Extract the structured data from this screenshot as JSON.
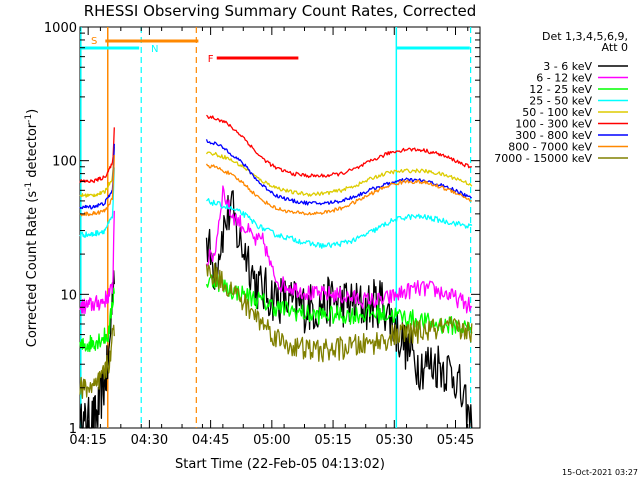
{
  "chart_data": {
    "type": "line",
    "title": "RHESSI Observing Summary Count Rates, Corrected",
    "xlabel": "Start Time (22-Feb-05 04:13:02)",
    "ylabel_main": "Corrected Count Rate (s",
    "ylabel_sup1": "-1",
    "ylabel_mid": " detector",
    "ylabel_sup2": "-1",
    "ylabel_end": ")",
    "xrange_min": [
      0,
      98
    ],
    "yrange": [
      1,
      1000
    ],
    "yscale": "log",
    "x_ticks": [
      {
        "t": 2,
        "label": "04:15"
      },
      {
        "t": 17,
        "label": "04:30"
      },
      {
        "t": 32,
        "label": "04:45"
      },
      {
        "t": 47,
        "label": "05:00"
      },
      {
        "t": 62,
        "label": "05:15"
      },
      {
        "t": 77,
        "label": "05:30"
      },
      {
        "t": 92,
        "label": "05:45"
      }
    ],
    "y_ticks": [
      {
        "v": 1000,
        "label": "1000"
      },
      {
        "v": 100,
        "label": "100"
      },
      {
        "v": 10,
        "label": "10"
      },
      {
        "v": 1,
        "label": "1"
      }
    ],
    "legend_header": [
      "Det 1,3,4,5,6,9,",
      "Att 0"
    ],
    "legend_position": "right",
    "series": [
      {
        "name": "3 - 6 keV",
        "color": "#000000",
        "noise": 0.55,
        "pre": [
          [
            0,
            1
          ],
          [
            4,
            1.2
          ],
          [
            7,
            3
          ],
          [
            8.5,
            20
          ]
        ],
        "post": [
          [
            31,
            25
          ],
          [
            33,
            15
          ],
          [
            35,
            30
          ],
          [
            37,
            45
          ],
          [
            39,
            25
          ],
          [
            41,
            20
          ],
          [
            43,
            12
          ],
          [
            46,
            10
          ],
          [
            50,
            9
          ],
          [
            55,
            8
          ],
          [
            58,
            8
          ],
          [
            62,
            9
          ],
          [
            66,
            8.5
          ],
          [
            70,
            8
          ],
          [
            74,
            9
          ],
          [
            78,
            5
          ],
          [
            83,
            3
          ],
          [
            88,
            3
          ],
          [
            92,
            2.5
          ],
          [
            94,
            1.5
          ],
          [
            96,
            1
          ]
        ]
      },
      {
        "name": "6 - 12 keV",
        "color": "#ff00ff",
        "noise": 0.18,
        "pre": [
          [
            0,
            8
          ],
          [
            4,
            8.5
          ],
          [
            6,
            9
          ],
          [
            8,
            11
          ],
          [
            8.5,
            60
          ]
        ],
        "post": [
          [
            31,
            18
          ],
          [
            33,
            20
          ],
          [
            35,
            60
          ],
          [
            37,
            40
          ],
          [
            39,
            35
          ],
          [
            41,
            30
          ],
          [
            43,
            25
          ],
          [
            45,
            25
          ],
          [
            47,
            15
          ],
          [
            49,
            12
          ],
          [
            53,
            11
          ],
          [
            57,
            10
          ],
          [
            62,
            10
          ],
          [
            66,
            9.5
          ],
          [
            70,
            9
          ],
          [
            74,
            9
          ],
          [
            78,
            10
          ],
          [
            82,
            11
          ],
          [
            86,
            11
          ],
          [
            90,
            10
          ],
          [
            93,
            9
          ],
          [
            96,
            8
          ]
        ]
      },
      {
        "name": "12 - 25 keV",
        "color": "#00ff00",
        "noise": 0.2,
        "pre": [
          [
            0,
            4
          ],
          [
            4,
            4.5
          ],
          [
            7,
            5
          ],
          [
            8.5,
            12
          ]
        ],
        "post": [
          [
            31,
            12
          ],
          [
            33,
            13
          ],
          [
            36,
            11
          ],
          [
            40,
            10
          ],
          [
            44,
            9
          ],
          [
            48,
            8
          ],
          [
            52,
            7.5
          ],
          [
            57,
            7
          ],
          [
            62,
            7
          ],
          [
            67,
            7
          ],
          [
            72,
            7.2
          ],
          [
            77,
            7
          ],
          [
            82,
            6.5
          ],
          [
            87,
            6
          ],
          [
            92,
            5.8
          ],
          [
            96,
            5.5
          ]
        ]
      },
      {
        "name": "25 - 50 keV",
        "color": "#00ffff",
        "noise": 0.06,
        "pre": [
          [
            0,
            28
          ],
          [
            3,
            28
          ],
          [
            6,
            30
          ],
          [
            8,
            38
          ],
          [
            8.5,
            110
          ]
        ],
        "post": [
          [
            31,
            50
          ],
          [
            33,
            48
          ],
          [
            36,
            45
          ],
          [
            40,
            40
          ],
          [
            44,
            32
          ],
          [
            48,
            28
          ],
          [
            52,
            26
          ],
          [
            56,
            24
          ],
          [
            60,
            23
          ],
          [
            64,
            24
          ],
          [
            68,
            26
          ],
          [
            72,
            30
          ],
          [
            76,
            35
          ],
          [
            80,
            38
          ],
          [
            84,
            38
          ],
          [
            88,
            36
          ],
          [
            92,
            34
          ],
          [
            96,
            32
          ]
        ]
      },
      {
        "name": "50 - 100 keV",
        "color": "#ddcc00",
        "noise": 0.04,
        "pre": [
          [
            0,
            55
          ],
          [
            3,
            55
          ],
          [
            6,
            58
          ],
          [
            8,
            75
          ],
          [
            8.5,
            150
          ]
        ],
        "post": [
          [
            31,
            115
          ],
          [
            33,
            112
          ],
          [
            36,
            105
          ],
          [
            40,
            90
          ],
          [
            44,
            72
          ],
          [
            48,
            63
          ],
          [
            52,
            58
          ],
          [
            56,
            56
          ],
          [
            60,
            57
          ],
          [
            64,
            60
          ],
          [
            68,
            66
          ],
          [
            72,
            75
          ],
          [
            76,
            82
          ],
          [
            80,
            84
          ],
          [
            84,
            84
          ],
          [
            88,
            80
          ],
          [
            92,
            74
          ],
          [
            96,
            66
          ]
        ]
      },
      {
        "name": "100 - 300 keV",
        "color": "#ff0000",
        "noise": 0.04,
        "pre": [
          [
            0,
            70
          ],
          [
            3,
            70
          ],
          [
            6,
            75
          ],
          [
            8,
            95
          ],
          [
            8.5,
            200
          ]
        ],
        "post": [
          [
            31,
            215
          ],
          [
            33,
            210
          ],
          [
            36,
            190
          ],
          [
            40,
            150
          ],
          [
            44,
            108
          ],
          [
            48,
            88
          ],
          [
            52,
            80
          ],
          [
            56,
            77
          ],
          [
            60,
            77
          ],
          [
            64,
            80
          ],
          [
            68,
            88
          ],
          [
            72,
            102
          ],
          [
            76,
            115
          ],
          [
            80,
            122
          ],
          [
            84,
            120
          ],
          [
            88,
            112
          ],
          [
            92,
            100
          ],
          [
            96,
            88
          ]
        ]
      },
      {
        "name": "300 - 800 keV",
        "color": "#0000ff",
        "noise": 0.04,
        "pre": [
          [
            0,
            45
          ],
          [
            3,
            45
          ],
          [
            6,
            48
          ],
          [
            8,
            60
          ],
          [
            8.5,
            160
          ]
        ],
        "post": [
          [
            31,
            140
          ],
          [
            33,
            135
          ],
          [
            36,
            120
          ],
          [
            40,
            95
          ],
          [
            44,
            68
          ],
          [
            48,
            55
          ],
          [
            52,
            50
          ],
          [
            56,
            48
          ],
          [
            60,
            48
          ],
          [
            64,
            50
          ],
          [
            68,
            55
          ],
          [
            72,
            62
          ],
          [
            76,
            68
          ],
          [
            80,
            72
          ],
          [
            84,
            71
          ],
          [
            88,
            66
          ],
          [
            92,
            60
          ],
          [
            96,
            52
          ]
        ]
      },
      {
        "name": "800 - 7000 keV",
        "color": "#ff8800",
        "noise": 0.04,
        "pre": [
          [
            0,
            40
          ],
          [
            3,
            40
          ],
          [
            6,
            42
          ],
          [
            8,
            52
          ],
          [
            8.5,
            130
          ]
        ],
        "post": [
          [
            31,
            92
          ],
          [
            33,
            90
          ],
          [
            36,
            82
          ],
          [
            40,
            68
          ],
          [
            44,
            52
          ],
          [
            48,
            44
          ],
          [
            52,
            41
          ],
          [
            56,
            40
          ],
          [
            60,
            41
          ],
          [
            64,
            44
          ],
          [
            68,
            50
          ],
          [
            72,
            58
          ],
          [
            76,
            66
          ],
          [
            80,
            70
          ],
          [
            84,
            69
          ],
          [
            88,
            64
          ],
          [
            92,
            58
          ],
          [
            96,
            50
          ]
        ]
      },
      {
        "name": "7000 - 15000 keV",
        "color": "#808000",
        "noise": 0.25,
        "pre": [
          [
            0,
            2
          ],
          [
            4,
            2
          ],
          [
            7,
            3
          ],
          [
            8.5,
            6
          ]
        ],
        "post": [
          [
            31,
            15
          ],
          [
            33,
            14
          ],
          [
            37,
            11
          ],
          [
            41,
            8
          ],
          [
            45,
            6
          ],
          [
            49,
            4.5
          ],
          [
            53,
            4
          ],
          [
            57,
            3.8
          ],
          [
            61,
            3.8
          ],
          [
            65,
            4
          ],
          [
            70,
            4.2
          ],
          [
            74,
            4.5
          ],
          [
            78,
            5
          ],
          [
            82,
            5.2
          ],
          [
            86,
            5.4
          ],
          [
            90,
            5.6
          ],
          [
            94,
            5.4
          ],
          [
            96,
            5.3
          ]
        ]
      }
    ],
    "markers": {
      "saa_label": "S",
      "night_label": "N",
      "flare_label": "F"
    },
    "timestamp": "15-Oct-2021 03:27"
  }
}
